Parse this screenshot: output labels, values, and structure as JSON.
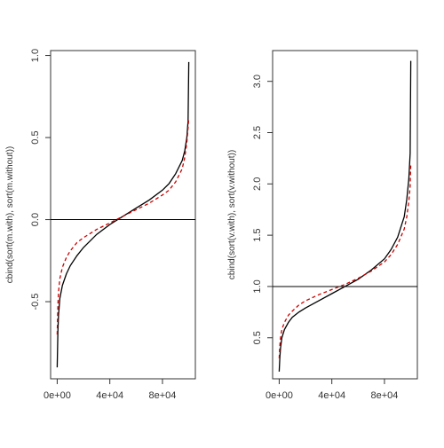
{
  "chart_data": [
    {
      "type": "line",
      "title": "",
      "xlabel": "",
      "ylabel": "cbind(sort(m.with), sort(m.without))",
      "xlim": [
        -5000,
        105000
      ],
      "ylim": [
        -0.97,
        1.03
      ],
      "x_ticks": [
        0,
        40000,
        80000
      ],
      "x_tick_labels": [
        "0e+00",
        "4e+04",
        "8e+04"
      ],
      "y_ticks": [
        -0.5,
        0.0,
        0.5,
        1.0
      ],
      "y_tick_labels": [
        "-0.5",
        "0.0",
        "0.5",
        "1.0"
      ],
      "hline": 0.0,
      "x": [
        0,
        500,
        1000,
        2000,
        4000,
        7000,
        10000,
        15000,
        20000,
        30000,
        40000,
        50000,
        60000,
        70000,
        80000,
        85000,
        90000,
        95000,
        97000,
        98500,
        99500,
        100000
      ],
      "series": [
        {
          "color": "#000000",
          "linestyle": "solid",
          "values": [
            -0.9,
            -0.68,
            -0.58,
            -0.48,
            -0.4,
            -0.33,
            -0.28,
            -0.22,
            -0.17,
            -0.09,
            -0.03,
            0.02,
            0.07,
            0.12,
            0.18,
            0.22,
            0.28,
            0.36,
            0.42,
            0.5,
            0.6,
            0.96
          ]
        },
        {
          "color": "#cc0000",
          "linestyle": "dashed",
          "values": [
            -0.7,
            -0.52,
            -0.44,
            -0.36,
            -0.29,
            -0.23,
            -0.19,
            -0.14,
            -0.11,
            -0.06,
            -0.02,
            0.02,
            0.06,
            0.1,
            0.15,
            0.18,
            0.23,
            0.31,
            0.38,
            0.47,
            0.56,
            0.62
          ]
        }
      ]
    },
    {
      "type": "line",
      "title": "",
      "xlabel": "",
      "ylabel": "cbind(sort(v.with), sort(v.without))",
      "xlim": [
        -5000,
        105000
      ],
      "ylim": [
        0.1,
        3.3
      ],
      "x_ticks": [
        0,
        40000,
        80000
      ],
      "x_tick_labels": [
        "0e+00",
        "4e+04",
        "8e+04"
      ],
      "y_ticks": [
        0.5,
        1.0,
        1.5,
        2.0,
        2.5,
        3.0
      ],
      "y_tick_labels": [
        "0.5",
        "1.0",
        "1.5",
        "2.0",
        "2.5",
        "3.0"
      ],
      "hline": 1.0,
      "x": [
        0,
        500,
        1000,
        2000,
        4000,
        7000,
        10000,
        15000,
        20000,
        30000,
        40000,
        50000,
        60000,
        70000,
        80000,
        85000,
        90000,
        95000,
        97000,
        98500,
        99500,
        100000
      ],
      "series": [
        {
          "color": "#000000",
          "linestyle": "solid",
          "values": [
            0.17,
            0.3,
            0.4,
            0.5,
            0.58,
            0.65,
            0.7,
            0.75,
            0.79,
            0.86,
            0.93,
            1.0,
            1.07,
            1.16,
            1.27,
            1.36,
            1.48,
            1.68,
            1.85,
            2.05,
            2.3,
            3.2
          ]
        },
        {
          "color": "#cc0000",
          "linestyle": "dashed",
          "values": [
            0.3,
            0.42,
            0.5,
            0.58,
            0.65,
            0.72,
            0.76,
            0.82,
            0.86,
            0.92,
            0.97,
            1.02,
            1.08,
            1.15,
            1.24,
            1.31,
            1.41,
            1.56,
            1.68,
            1.83,
            1.98,
            2.2
          ]
        }
      ]
    }
  ]
}
